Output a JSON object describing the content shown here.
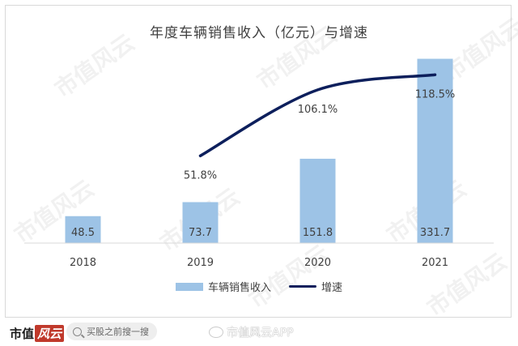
{
  "chart_data": {
    "type": "bar",
    "title": "年度车辆销售收入（亿元）与增速",
    "categories": [
      "2018",
      "2019",
      "2020",
      "2021"
    ],
    "series": [
      {
        "name": "车辆销售收入",
        "type": "bar",
        "values": [
          48.5,
          73.7,
          151.8,
          331.7
        ],
        "labels": [
          "48.5",
          "73.7",
          "151.8",
          "331.7"
        ],
        "color": "#9dc3e6"
      },
      {
        "name": "增速",
        "type": "line",
        "values": [
          null,
          51.8,
          106.1,
          118.5
        ],
        "labels": [
          "",
          "51.8%",
          "106.1%",
          "118.5%"
        ],
        "unit": "%",
        "color": "#0d1f5c"
      }
    ],
    "ylim": [
      0,
      350
    ],
    "y2lim": [
      -20,
      140
    ],
    "grid": false,
    "legend": "bottom"
  },
  "watermark": "市值风云",
  "footer": {
    "brand_main": "市值",
    "brand_accent": "风云",
    "search_text": "买股之前搜一搜",
    "weibo_text": "市值风云APP"
  }
}
